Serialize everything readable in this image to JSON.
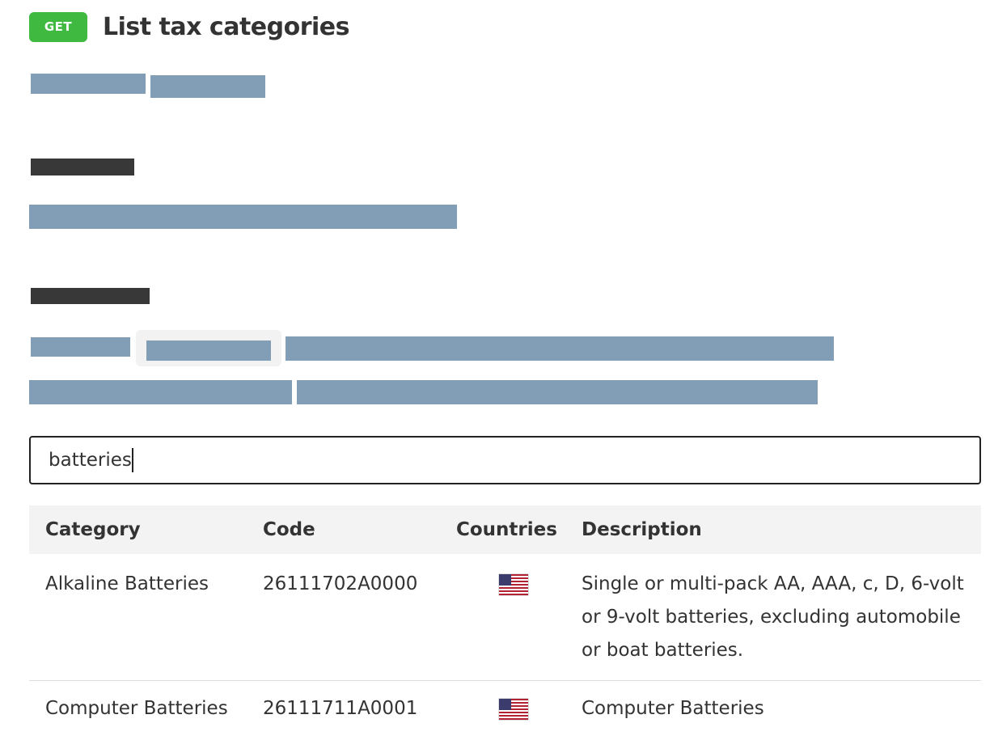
{
  "header": {
    "method": "GET",
    "title": "List tax categories"
  },
  "search": {
    "value": "batteries",
    "placeholder": ""
  },
  "table": {
    "columns": [
      "Category",
      "Code",
      "Countries",
      "Description"
    ],
    "rows": [
      {
        "category": "Alkaline Batteries",
        "code": "26111702A0000",
        "country_flag": "us-flag-icon",
        "description": "Single or multi-pack AA, AAA, c, D, 6-volt or 9-volt batteries, excluding automobile or boat batteries."
      },
      {
        "category": "Computer Batteries",
        "code": "26111711A0001",
        "country_flag": "us-flag-icon",
        "description": "Computer Batteries"
      }
    ]
  },
  "colors": {
    "method_badge": "#3fb93f",
    "redaction_blue": "#829db6",
    "redaction_dark": "#383838",
    "table_header_bg": "#f3f3f3"
  }
}
